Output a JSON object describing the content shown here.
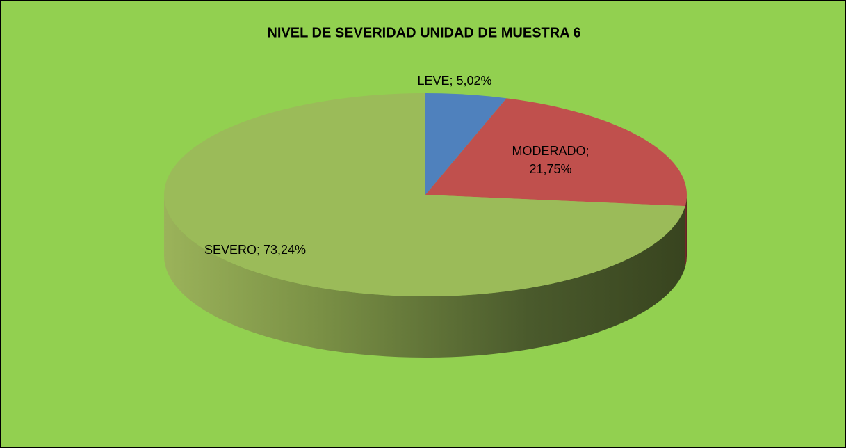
{
  "chart_data": {
    "type": "pie",
    "title": "NIVEL DE SEVERIDAD UNIDAD DE MUESTRA 6",
    "categories": [
      "LEVE",
      "MODERADO",
      "SEVERO"
    ],
    "values": [
      5.02,
      21.75,
      73.24
    ],
    "value_labels": [
      "LEVE; 5,02%",
      "MODERADO; 21,75%",
      "SEVERO; 73,24%"
    ],
    "colors": [
      "#4f81bd",
      "#c0504d",
      "#9bbb59"
    ],
    "background": "#92d050"
  }
}
